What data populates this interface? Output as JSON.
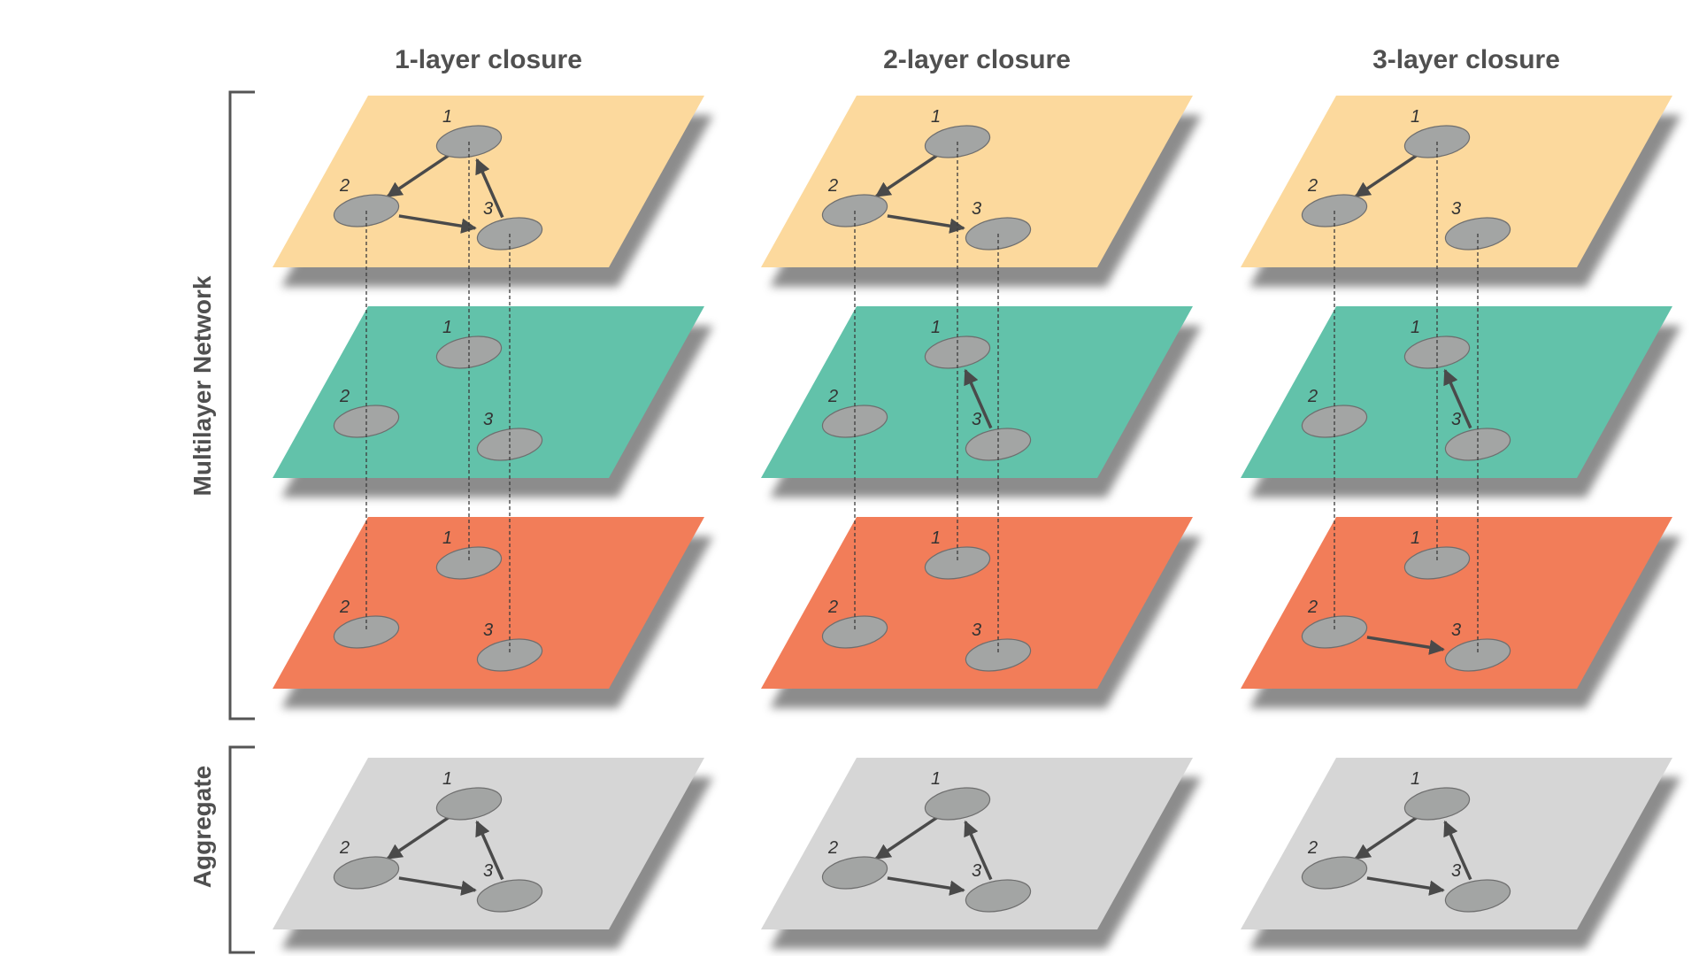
{
  "columns": [
    {
      "title": "1-layer closure",
      "layers": [
        {
          "color": "#fcd99d",
          "edges": [
            [
              1,
              2
            ],
            [
              2,
              3
            ],
            [
              3,
              1
            ]
          ]
        },
        {
          "color": "#62c2aa",
          "edges": []
        },
        {
          "color": "#f27d59",
          "edges": []
        }
      ],
      "links": [
        2,
        1,
        3
      ],
      "aggregate": {
        "color": "#d6d6d6",
        "edges": [
          [
            1,
            2
          ],
          [
            2,
            3
          ],
          [
            3,
            1
          ]
        ]
      }
    },
    {
      "title": "2-layer closure",
      "layers": [
        {
          "color": "#fcd99d",
          "edges": [
            [
              1,
              2
            ],
            [
              2,
              3
            ]
          ]
        },
        {
          "color": "#62c2aa",
          "edges": [
            [
              3,
              1
            ]
          ]
        },
        {
          "color": "#f27d59",
          "edges": []
        }
      ],
      "links": [
        2,
        1,
        3
      ],
      "aggregate": {
        "color": "#d6d6d6",
        "edges": [
          [
            1,
            2
          ],
          [
            2,
            3
          ],
          [
            3,
            1
          ]
        ]
      }
    },
    {
      "title": "3-layer closure",
      "layers": [
        {
          "color": "#fcd99d",
          "edges": [
            [
              1,
              2
            ]
          ]
        },
        {
          "color": "#62c2aa",
          "edges": [
            [
              3,
              1
            ]
          ]
        },
        {
          "color": "#f27d59",
          "edges": [
            [
              2,
              3
            ]
          ]
        }
      ],
      "links": [
        2,
        1,
        3
      ],
      "aggregate": {
        "color": "#d6d6d6",
        "edges": [
          [
            1,
            2
          ],
          [
            2,
            3
          ],
          [
            3,
            1
          ]
        ]
      }
    }
  ],
  "node_labels": [
    "1",
    "2",
    "3"
  ],
  "side_labels": {
    "multilayer": "Multilayer Network",
    "aggregate": "Aggregate"
  }
}
